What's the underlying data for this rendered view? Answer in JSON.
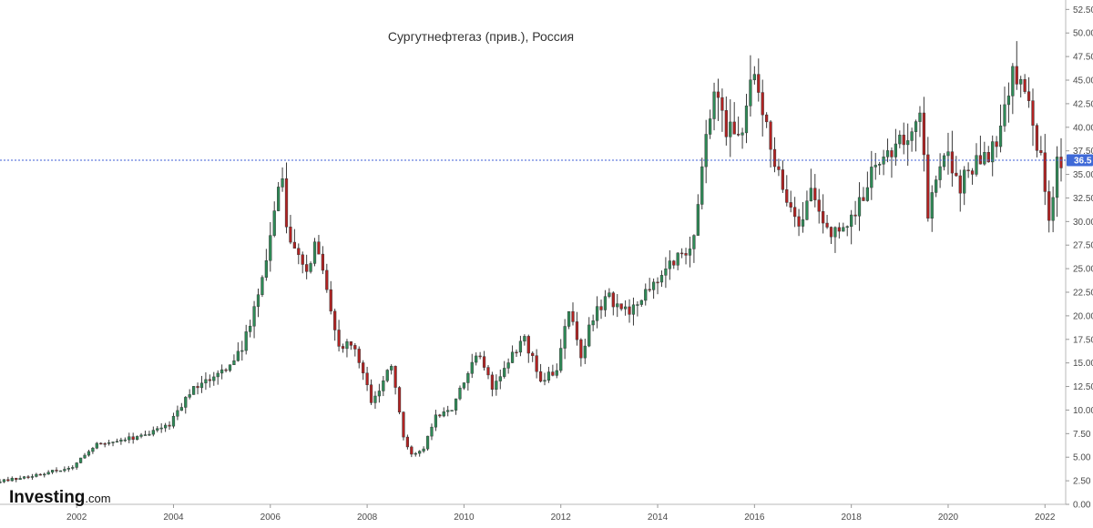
{
  "chart_data": {
    "type": "candlestick",
    "title": "Сургутнефтегаз (прив.), Россия",
    "interval": "monthly",
    "y_ticks": [
      0.0,
      2.5,
      5.0,
      7.5,
      10.0,
      12.5,
      15.0,
      17.5,
      20.0,
      22.5,
      25.0,
      27.5,
      30.0,
      32.5,
      35.0,
      37.5,
      40.0,
      42.5,
      45.0,
      47.5,
      50.0,
      52.5
    ],
    "y_tick_labels": [
      "0.00",
      "2.50",
      "5.00",
      "7.50",
      "10.00",
      "12.50",
      "15.00",
      "17.50",
      "20.00",
      "22.50",
      "25.00",
      "27.50",
      "30.00",
      "32.50",
      "35.00",
      "37.50",
      "40.00",
      "42.50",
      "45.00",
      "47.50",
      "50.00",
      "52.50"
    ],
    "x_tick_labels": [
      "2002",
      "2004",
      "2006",
      "2008",
      "2010",
      "2012",
      "2014",
      "2016",
      "2018",
      "2020",
      "2022"
    ],
    "xlim": [
      "2000-06",
      "2022-05"
    ],
    "ylim": [
      0,
      53.5
    ],
    "current_price": 36.5,
    "current_price_label": "36.5",
    "colors": {
      "up": "#2e8b57",
      "down": "#b22222",
      "wick": "#333333",
      "price_line": "#3f5fd6",
      "price_label_bg": "#3f6ad8"
    },
    "grid": false,
    "keypoints": [
      [
        "2000-06",
        2.4
      ],
      [
        "2001-06",
        3.4
      ],
      [
        "2001-12",
        4.0
      ],
      [
        "2002-06",
        6.5
      ],
      [
        "2002-12",
        6.8
      ],
      [
        "2003-06",
        7.4
      ],
      [
        "2003-12",
        8.5
      ],
      [
        "2004-06",
        12.3
      ],
      [
        "2004-12",
        13.5
      ],
      [
        "2005-06",
        16.5
      ],
      [
        "2005-09",
        21.0
      ],
      [
        "2005-12",
        26.0
      ],
      [
        "2006-04",
        35.5
      ],
      [
        "2006-05",
        29.0
      ],
      [
        "2006-10",
        24.0
      ],
      [
        "2006-12",
        28.5
      ],
      [
        "2007-06",
        17.2
      ],
      [
        "2007-10",
        16.5
      ],
      [
        "2008-02",
        11.0
      ],
      [
        "2008-05",
        12.8
      ],
      [
        "2008-07",
        15.0
      ],
      [
        "2008-10",
        7.0
      ],
      [
        "2008-12",
        5.2
      ],
      [
        "2009-03",
        5.8
      ],
      [
        "2009-06",
        9.5
      ],
      [
        "2009-10",
        10.0
      ],
      [
        "2010-04",
        16.2
      ],
      [
        "2010-08",
        12.5
      ],
      [
        "2010-12",
        15.2
      ],
      [
        "2011-04",
        17.8
      ],
      [
        "2011-08",
        12.8
      ],
      [
        "2011-12",
        14.5
      ],
      [
        "2012-03",
        20.5
      ],
      [
        "2012-06",
        15.5
      ],
      [
        "2012-09",
        20.0
      ],
      [
        "2013-01",
        22.0
      ],
      [
        "2013-06",
        20.0
      ],
      [
        "2013-12",
        24.0
      ],
      [
        "2014-06",
        26.0
      ],
      [
        "2014-10",
        28.5
      ],
      [
        "2014-12",
        36.0
      ],
      [
        "2015-03",
        44.0
      ],
      [
        "2015-06",
        40.0
      ],
      [
        "2015-09",
        38.0
      ],
      [
        "2015-12",
        45.5
      ],
      [
        "2016-03",
        42.5
      ],
      [
        "2016-06",
        36.0
      ],
      [
        "2016-09",
        31.5
      ],
      [
        "2016-12",
        29.0
      ],
      [
        "2017-03",
        34.0
      ],
      [
        "2017-06",
        29.0
      ],
      [
        "2017-09",
        28.5
      ],
      [
        "2017-12",
        29.5
      ],
      [
        "2018-06",
        35.0
      ],
      [
        "2018-12",
        37.5
      ],
      [
        "2019-06",
        41.0
      ],
      [
        "2019-08",
        31.0
      ],
      [
        "2019-12",
        38.0
      ],
      [
        "2020-04",
        34.0
      ],
      [
        "2020-09",
        36.5
      ],
      [
        "2021-02",
        39.0
      ],
      [
        "2021-05",
        46.0
      ],
      [
        "2021-09",
        42.0
      ],
      [
        "2021-12",
        37.0
      ],
      [
        "2022-02",
        30.0
      ],
      [
        "2022-04",
        36.5
      ]
    ]
  },
  "branding": {
    "logo_main": "Investing",
    "logo_suffix": ".com"
  }
}
